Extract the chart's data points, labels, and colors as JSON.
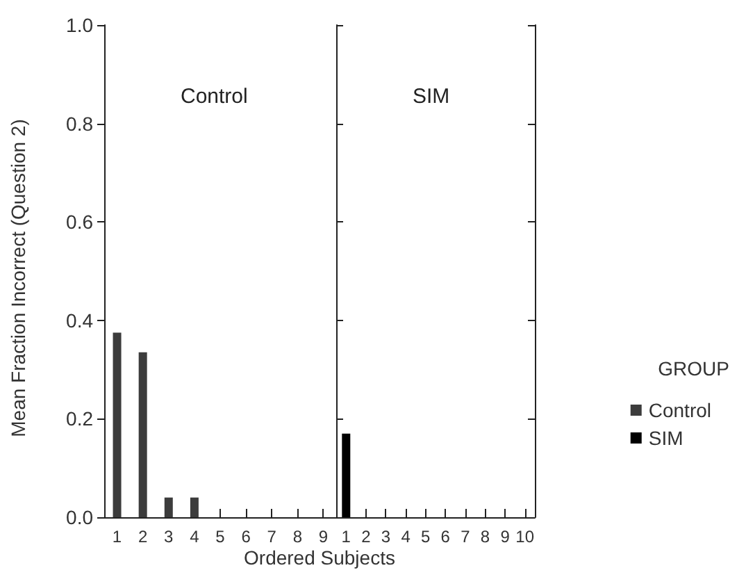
{
  "chart_data": [
    {
      "type": "bar",
      "title": "Control",
      "xlabel": "Ordered Subjects",
      "ylabel": "Mean Fraction Incorrect (Question 2)",
      "categories": [
        "1",
        "2",
        "3",
        "4",
        "5",
        "6",
        "7",
        "8",
        "9"
      ],
      "series": [
        {
          "color": "#3c3c3c",
          "values": [
            0.375,
            0.335,
            0.04,
            0.04,
            0,
            0,
            0,
            0,
            0
          ]
        }
      ],
      "ylim": [
        0,
        1
      ],
      "yticks": [
        {
          "value": 0,
          "label": "0.0"
        },
        {
          "value": 0.2,
          "label": "0.2"
        },
        {
          "value": 0.4,
          "label": "0.4"
        },
        {
          "value": 0.6,
          "label": "0.6"
        },
        {
          "value": 0.8,
          "label": "0.8"
        },
        {
          "value": 1,
          "label": "1.0"
        }
      ],
      "grid": false,
      "legend": false
    },
    {
      "type": "bar",
      "title": "SIM",
      "legend_title": "GROUP",
      "categories": [
        "1",
        "2",
        "3",
        "4",
        "5",
        "6",
        "7",
        "8",
        "9",
        "10"
      ],
      "series": [
        {
          "name": "Control",
          "color": "#3c3c3c",
          "values": [
            null,
            null,
            null,
            null,
            null,
            null,
            null,
            null,
            null,
            null
          ]
        },
        {
          "name": "SIM",
          "color": "#000000",
          "values": [
            0.17,
            0,
            0,
            0,
            0,
            0,
            0,
            0,
            0,
            0
          ]
        }
      ],
      "ylim": [
        0,
        1
      ],
      "yticks": [
        {
          "value": 0,
          "label": null
        },
        {
          "value": 0.2,
          "label": null
        },
        {
          "value": 0.4,
          "label": null
        },
        {
          "value": 0.6,
          "label": null
        },
        {
          "value": 0.8,
          "label": null
        },
        {
          "value": 1,
          "label": null
        }
      ],
      "grid": false,
      "tick_labels": "x",
      "legend": "right"
    }
  ]
}
